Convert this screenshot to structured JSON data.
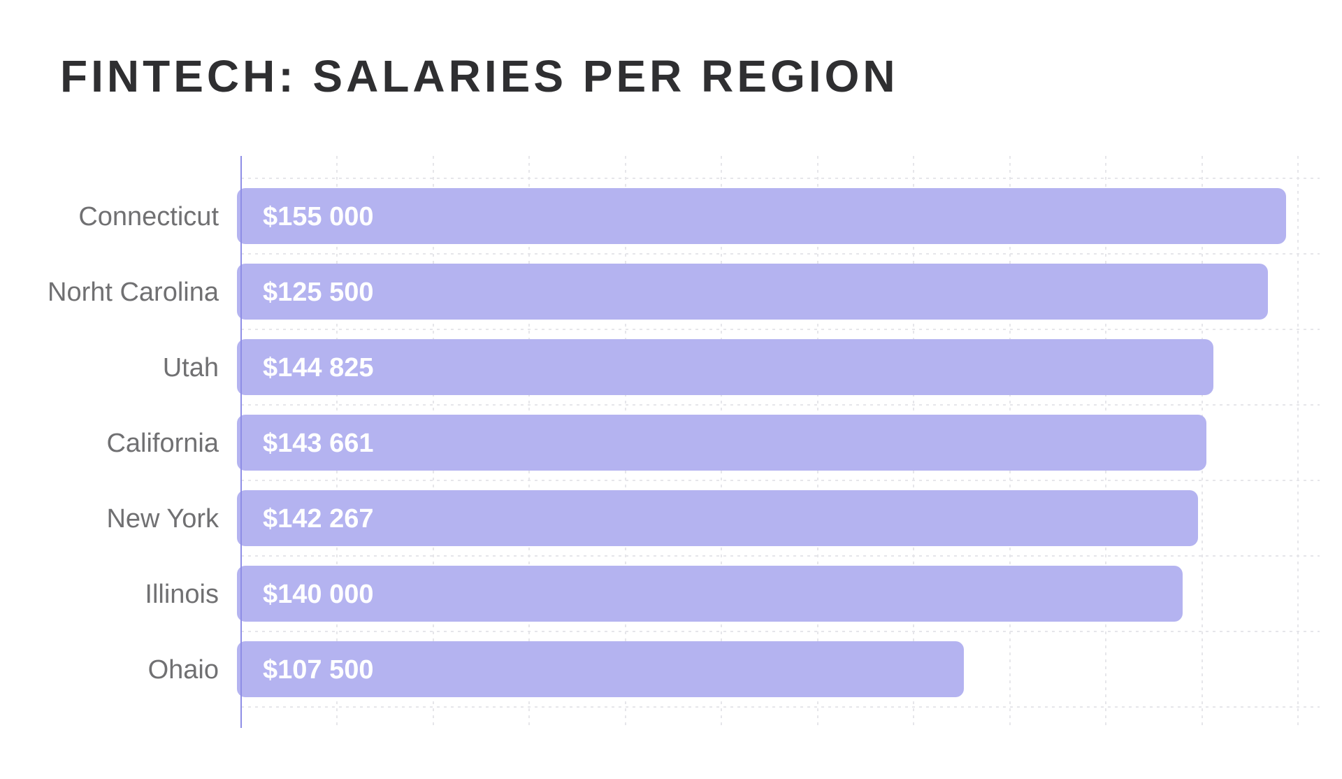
{
  "chart_data": {
    "type": "bar",
    "orientation": "horizontal",
    "title": "FINTECH: SALARIES PER REGION",
    "categories": [
      "Connecticut",
      "Norht Carolina",
      "Utah",
      "California",
      "New York",
      "Illinois",
      "Ohaio"
    ],
    "values": [
      155000,
      125500,
      144825,
      143661,
      142267,
      140000,
      107500
    ],
    "value_labels": [
      "$155 000",
      "$125 500",
      "$144 825",
      "$143 661",
      "$142 267",
      "$140 000",
      "$107 500"
    ],
    "grid": true,
    "legend": "none",
    "bar_color": "#b4b3f0",
    "axis_color": "#8f8ee6",
    "title_color": "#2f2f31",
    "label_color": "#707072"
  }
}
